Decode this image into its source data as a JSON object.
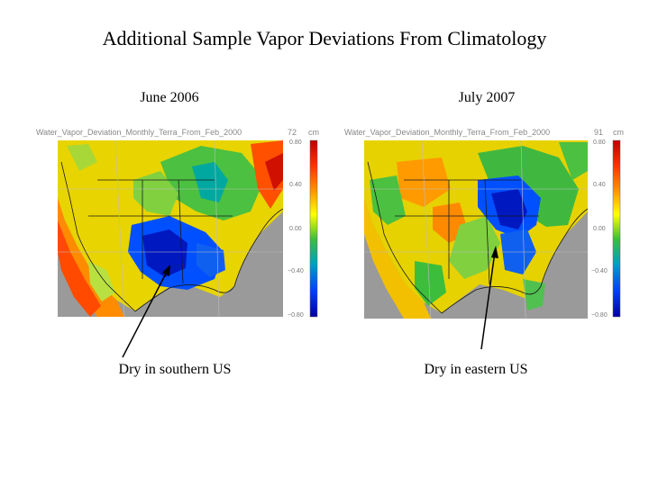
{
  "slide": {
    "title": "Additional Sample Vapor Deviations From Climatology"
  },
  "panels": [
    {
      "label": "June 2006",
      "map_title": "Water_Vapor_Deviation_Monthly_Terra_From_Feb_2000",
      "unit": "cm",
      "month_marker": "72",
      "colorbar_ticks": [
        "0.80",
        "0.40",
        "0.00",
        "−0.40",
        "−0.80"
      ],
      "caption": "Dry in southern US",
      "dry_region": "southern US"
    },
    {
      "label": "July 2007",
      "map_title": "Water_Vapor_Deviation_Monthly_Terra_From_Feb_2000",
      "unit": "cm",
      "month_marker": "91",
      "colorbar_ticks": [
        "0.80",
        "0.40",
        "0.00",
        "−0.40",
        "−0.80"
      ],
      "caption": "Dry in eastern US",
      "dry_region": "eastern US"
    }
  ],
  "colors": {
    "colorbar": [
      "#c00000",
      "#ff3000",
      "#ff9000",
      "#ffff00",
      "#3cbe3c",
      "#00a0c0",
      "#0040ff",
      "#0000a0"
    ],
    "ocean": "#9a9a9a"
  }
}
